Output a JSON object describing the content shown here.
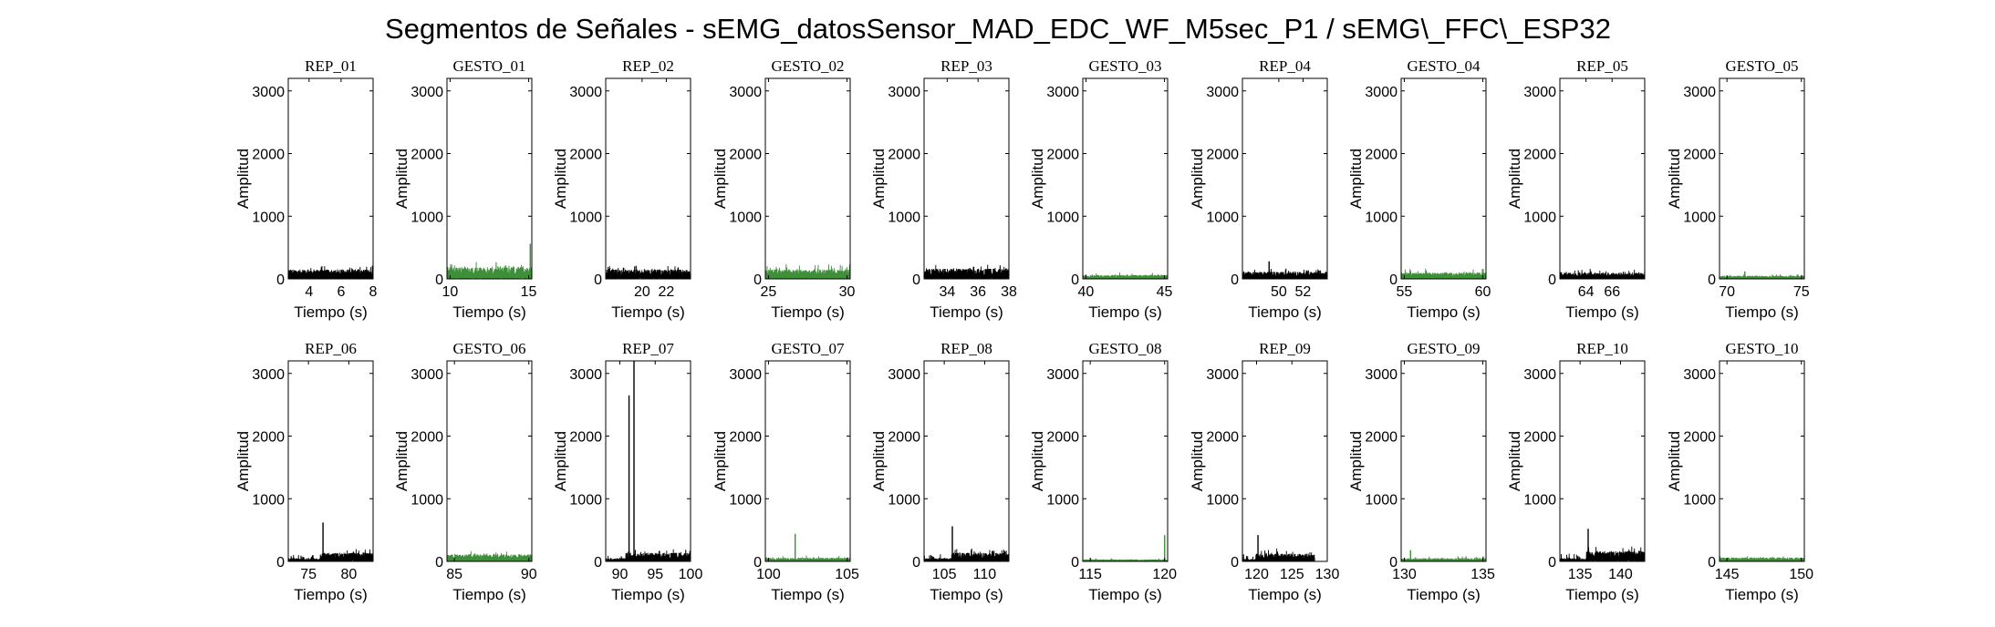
{
  "suptitle": "Segmentos de Señales - sEMG_datosSensor_MAD_EDC_WF_M5sec_P1 / sEMG\\_FFC\\_ESP32",
  "colors": {
    "rep": "#000000",
    "gesto": "#3f8f3a"
  },
  "chart_data": [
    {
      "type": "line",
      "title": "REP_01",
      "color": "rep",
      "xlabel": "Tiempo (s)",
      "ylabel": "Amplitud",
      "xlim": [
        2.7,
        8
      ],
      "ylim": [
        0,
        3200
      ],
      "xticks": [
        4,
        6,
        8
      ],
      "yticks": [
        0,
        1000,
        2000,
        3000
      ],
      "base": 120,
      "noise": 90,
      "spike_at": null,
      "spike_val": 0
    },
    {
      "type": "line",
      "title": "GESTO_01",
      "color": "gesto",
      "xlabel": "Tiempo (s)",
      "ylabel": "Amplitud",
      "xlim": [
        9.8,
        15.2
      ],
      "ylim": [
        0,
        3200
      ],
      "xticks": [
        10,
        15
      ],
      "yticks": [
        0,
        1000,
        2000,
        3000
      ],
      "base": 150,
      "noise": 100,
      "spike_at": 15.1,
      "spike_val": 560
    },
    {
      "type": "line",
      "title": "REP_02",
      "color": "rep",
      "xlabel": "Tiempo (s)",
      "ylabel": "Amplitud",
      "xlim": [
        17,
        24
      ],
      "ylim": [
        0,
        3200
      ],
      "xticks": [
        20,
        22
      ],
      "yticks": [
        0,
        1000,
        2000,
        3000
      ],
      "base": 120,
      "noise": 80,
      "spike_at": null,
      "spike_val": 0
    },
    {
      "type": "line",
      "title": "GESTO_02",
      "color": "gesto",
      "xlabel": "Tiempo (s)",
      "ylabel": "Amplitud",
      "xlim": [
        24.8,
        30.2
      ],
      "ylim": [
        0,
        3200
      ],
      "xticks": [
        25,
        30
      ],
      "yticks": [
        0,
        1000,
        2000,
        3000
      ],
      "base": 120,
      "noise": 110,
      "spike_at": null,
      "spike_val": 0
    },
    {
      "type": "line",
      "title": "REP_03",
      "color": "rep",
      "xlabel": "Tiempo (s)",
      "ylabel": "Amplitud",
      "xlim": [
        32.5,
        38
      ],
      "ylim": [
        0,
        3200
      ],
      "xticks": [
        34,
        36,
        38
      ],
      "yticks": [
        0,
        1000,
        2000,
        3000
      ],
      "base": 130,
      "noise": 90,
      "spike_at": null,
      "spike_val": 0
    },
    {
      "type": "line",
      "title": "GESTO_03",
      "color": "gesto",
      "xlabel": "Tiempo (s)",
      "ylabel": "Amplitud",
      "xlim": [
        39.8,
        45.2
      ],
      "ylim": [
        0,
        3200
      ],
      "xticks": [
        40,
        45
      ],
      "yticks": [
        0,
        1000,
        2000,
        3000
      ],
      "base": 50,
      "noise": 40,
      "spike_at": null,
      "spike_val": 0
    },
    {
      "type": "line",
      "title": "REP_04",
      "color": "rep",
      "xlabel": "Tiempo (s)",
      "ylabel": "Amplitud",
      "xlim": [
        47,
        54
      ],
      "ylim": [
        0,
        3200
      ],
      "xticks": [
        50,
        52
      ],
      "yticks": [
        0,
        1000,
        2000,
        3000
      ],
      "base": 90,
      "noise": 70,
      "spike_at": 49.2,
      "spike_val": 280
    },
    {
      "type": "line",
      "title": "GESTO_04",
      "color": "gesto",
      "xlabel": "Tiempo (s)",
      "ylabel": "Amplitud",
      "xlim": [
        54.8,
        60.2
      ],
      "ylim": [
        0,
        3200
      ],
      "xticks": [
        55,
        60
      ],
      "yticks": [
        0,
        1000,
        2000,
        3000
      ],
      "base": 80,
      "noise": 70,
      "spike_at": null,
      "spike_val": 0
    },
    {
      "type": "line",
      "title": "REP_05",
      "color": "rep",
      "xlabel": "Tiempo (s)",
      "ylabel": "Amplitud",
      "xlim": [
        62,
        68.5
      ],
      "ylim": [
        0,
        3200
      ],
      "xticks": [
        64,
        66
      ],
      "yticks": [
        0,
        1000,
        2000,
        3000
      ],
      "base": 80,
      "noise": 70,
      "spike_at": null,
      "spike_val": 0
    },
    {
      "type": "line",
      "title": "GESTO_05",
      "color": "gesto",
      "xlabel": "Tiempo (s)",
      "ylabel": "Amplitud",
      "xlim": [
        69.5,
        75.2
      ],
      "ylim": [
        0,
        3200
      ],
      "xticks": [
        70,
        75
      ],
      "yticks": [
        0,
        1000,
        2000,
        3000
      ],
      "base": 40,
      "noise": 30,
      "spike_at": 71.2,
      "spike_val": 120
    },
    {
      "type": "line",
      "title": "REP_06",
      "color": "rep",
      "xlabel": "Tiempo (s)",
      "ylabel": "Amplitud",
      "xlim": [
        72.5,
        83
      ],
      "ylim": [
        0,
        3200
      ],
      "xticks": [
        75,
        80
      ],
      "yticks": [
        0,
        1000,
        2000,
        3000
      ],
      "base": 110,
      "noise": 80,
      "spike_at": 76.8,
      "spike_val": 620,
      "pre_level": 40,
      "pre_until": 76.7
    },
    {
      "type": "line",
      "title": "GESTO_06",
      "color": "gesto",
      "xlabel": "Tiempo (s)",
      "ylabel": "Amplitud",
      "xlim": [
        84.5,
        90.2
      ],
      "ylim": [
        0,
        3200
      ],
      "xticks": [
        85,
        90
      ],
      "yticks": [
        0,
        1000,
        2000,
        3000
      ],
      "base": 90,
      "noise": 70,
      "spike_at": null,
      "spike_val": 0
    },
    {
      "type": "line",
      "title": "REP_07",
      "color": "rep",
      "xlabel": "Tiempo (s)",
      "ylabel": "Amplitud",
      "xlim": [
        88,
        100
      ],
      "ylim": [
        0,
        3200
      ],
      "xticks": [
        90,
        95,
        100
      ],
      "yticks": [
        0,
        1000,
        2000,
        3000
      ],
      "base": 110,
      "noise": 80,
      "spike_at": 91.3,
      "spike_val": 2650,
      "spike2_at": 92,
      "spike2_val": 3200,
      "pre_level": 40,
      "pre_until": 90.8
    },
    {
      "type": "line",
      "title": "GESTO_07",
      "color": "gesto",
      "xlabel": "Tiempo (s)",
      "ylabel": "Amplitud",
      "xlim": [
        99.8,
        105.2
      ],
      "ylim": [
        0,
        3200
      ],
      "xticks": [
        100,
        105
      ],
      "yticks": [
        0,
        1000,
        2000,
        3000
      ],
      "base": 45,
      "noise": 40,
      "spike_at": 101.7,
      "spike_val": 440
    },
    {
      "type": "line",
      "title": "REP_08",
      "color": "rep",
      "xlabel": "Tiempo (s)",
      "ylabel": "Amplitud",
      "xlim": [
        102.5,
        113
      ],
      "ylim": [
        0,
        3200
      ],
      "xticks": [
        105,
        110
      ],
      "yticks": [
        0,
        1000,
        2000,
        3000
      ],
      "base": 110,
      "noise": 90,
      "spike_at": 106,
      "spike_val": 560,
      "pre_level": 40,
      "pre_until": 105.9
    },
    {
      "type": "line",
      "title": "GESTO_08",
      "color": "gesto",
      "xlabel": "Tiempo (s)",
      "ylabel": "Amplitud",
      "xlim": [
        114.5,
        120.2
      ],
      "ylim": [
        0,
        3200
      ],
      "xticks": [
        115,
        120
      ],
      "yticks": [
        0,
        1000,
        2000,
        3000
      ],
      "base": 25,
      "noise": 20,
      "spike_at": 120,
      "spike_val": 420
    },
    {
      "type": "line",
      "title": "REP_09",
      "color": "rep",
      "xlabel": "Tiempo (s)",
      "ylabel": "Amplitud",
      "xlim": [
        118,
        130
      ],
      "ylim": [
        0,
        3200
      ],
      "xticks": [
        120,
        125,
        130
      ],
      "yticks": [
        0,
        1000,
        2000,
        3000
      ],
      "base": 100,
      "noise": 90,
      "spike_at": 120.2,
      "spike_val": 420,
      "pre_level": 30,
      "pre_until": 119.9,
      "post_level": 0,
      "post_from": 128.2
    },
    {
      "type": "line",
      "title": "GESTO_09",
      "color": "gesto",
      "xlabel": "Tiempo (s)",
      "ylabel": "Amplitud",
      "xlim": [
        129.8,
        135.2
      ],
      "ylim": [
        0,
        3200
      ],
      "xticks": [
        130,
        135
      ],
      "yticks": [
        0,
        1000,
        2000,
        3000
      ],
      "base": 40,
      "noise": 40,
      "spike_at": 130.4,
      "spike_val": 180
    },
    {
      "type": "line",
      "title": "REP_10",
      "color": "rep",
      "xlabel": "Tiempo (s)",
      "ylabel": "Amplitud",
      "xlim": [
        132.5,
        143
      ],
      "ylim": [
        0,
        3200
      ],
      "xticks": [
        135,
        140
      ],
      "yticks": [
        0,
        1000,
        2000,
        3000
      ],
      "base": 130,
      "noise": 100,
      "spike_at": 136,
      "spike_val": 520,
      "pre_level": 40,
      "pre_until": 135.8
    },
    {
      "type": "line",
      "title": "GESTO_10",
      "color": "gesto",
      "xlabel": "Tiempo (s)",
      "ylabel": "Amplitud",
      "xlim": [
        144.5,
        150.2
      ],
      "ylim": [
        0,
        3200
      ],
      "xticks": [
        145,
        150
      ],
      "yticks": [
        0,
        1000,
        2000,
        3000
      ],
      "base": 50,
      "noise": 30,
      "spike_at": null,
      "spike_val": 0
    }
  ]
}
